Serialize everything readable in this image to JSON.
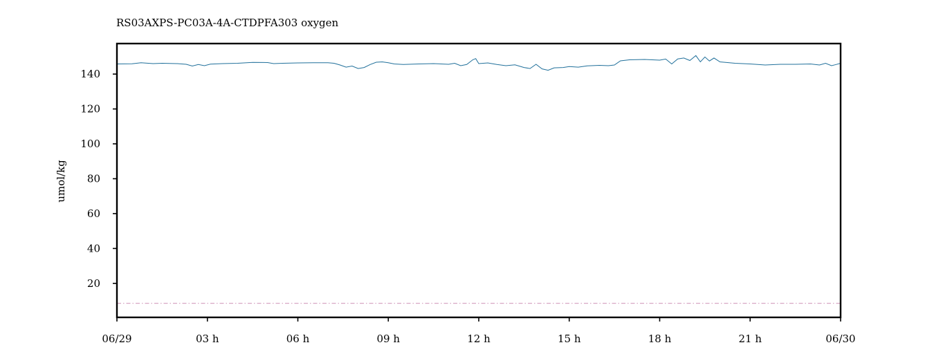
{
  "chart_data": {
    "type": "line",
    "title": "RS03AXPS-PC03A-4A-CTDPFA303 oxygen",
    "xlabel": "",
    "ylabel": "umol/kg",
    "x_unit": "hours",
    "xlim": [
      0,
      24
    ],
    "ylim": [
      0.5,
      157.5
    ],
    "x_ticks": [
      {
        "value": 0,
        "label": "06/29"
      },
      {
        "value": 3,
        "label": "03 h"
      },
      {
        "value": 6,
        "label": "06 h"
      },
      {
        "value": 9,
        "label": "09 h"
      },
      {
        "value": 12,
        "label": "12 h"
      },
      {
        "value": 15,
        "label": "15 h"
      },
      {
        "value": 18,
        "label": "18 h"
      },
      {
        "value": 21,
        "label": "21 h"
      },
      {
        "value": 24,
        "label": "06/30"
      }
    ],
    "y_ticks": [
      20,
      40,
      60,
      80,
      100,
      120,
      140
    ],
    "grid": false,
    "legend": "none",
    "series": [
      {
        "color": "#1f6f9a",
        "style": "solid",
        "points": [
          [
            0,
            145.8
          ],
          [
            0.5,
            145.9
          ],
          [
            0.8,
            146.5
          ],
          [
            1.2,
            146.0
          ],
          [
            1.5,
            146.2
          ],
          [
            2.0,
            146.0
          ],
          [
            2.3,
            145.6
          ],
          [
            2.5,
            144.6
          ],
          [
            2.7,
            145.5
          ],
          [
            2.9,
            144.8
          ],
          [
            3.1,
            145.7
          ],
          [
            3.5,
            146.0
          ],
          [
            4.0,
            146.2
          ],
          [
            4.5,
            146.7
          ],
          [
            5.0,
            146.6
          ],
          [
            5.2,
            146.0
          ],
          [
            5.5,
            146.2
          ],
          [
            6.0,
            146.4
          ],
          [
            6.5,
            146.5
          ],
          [
            7.0,
            146.5
          ],
          [
            7.2,
            146.2
          ],
          [
            7.4,
            145.2
          ],
          [
            7.6,
            144.0
          ],
          [
            7.8,
            144.6
          ],
          [
            8.0,
            143.2
          ],
          [
            8.2,
            143.8
          ],
          [
            8.4,
            145.5
          ],
          [
            8.6,
            146.8
          ],
          [
            8.8,
            147.0
          ],
          [
            9.0,
            146.5
          ],
          [
            9.2,
            145.8
          ],
          [
            9.5,
            145.5
          ],
          [
            10.0,
            145.8
          ],
          [
            10.5,
            146.0
          ],
          [
            11.0,
            145.6
          ],
          [
            11.2,
            146.2
          ],
          [
            11.4,
            144.8
          ],
          [
            11.6,
            145.5
          ],
          [
            11.8,
            148.2
          ],
          [
            11.9,
            148.9
          ],
          [
            12.0,
            146.0
          ],
          [
            12.3,
            146.4
          ],
          [
            12.6,
            145.5
          ],
          [
            12.9,
            144.8
          ],
          [
            13.2,
            145.3
          ],
          [
            13.5,
            143.8
          ],
          [
            13.7,
            143.2
          ],
          [
            13.9,
            145.6
          ],
          [
            14.1,
            143.0
          ],
          [
            14.3,
            142.2
          ],
          [
            14.5,
            143.6
          ],
          [
            14.8,
            143.8
          ],
          [
            15.0,
            144.3
          ],
          [
            15.3,
            144.0
          ],
          [
            15.6,
            144.7
          ],
          [
            16.0,
            145.0
          ],
          [
            16.3,
            144.8
          ],
          [
            16.5,
            145.2
          ],
          [
            16.7,
            147.6
          ],
          [
            17.0,
            148.2
          ],
          [
            17.5,
            148.4
          ],
          [
            18.0,
            148.0
          ],
          [
            18.2,
            148.6
          ],
          [
            18.4,
            145.8
          ],
          [
            18.6,
            148.7
          ],
          [
            18.8,
            149.2
          ],
          [
            19.0,
            147.8
          ],
          [
            19.2,
            150.6
          ],
          [
            19.35,
            147.0
          ],
          [
            19.5,
            149.8
          ],
          [
            19.65,
            147.5
          ],
          [
            19.8,
            149.2
          ],
          [
            20.0,
            147.0
          ],
          [
            20.5,
            146.2
          ],
          [
            21.0,
            145.8
          ],
          [
            21.5,
            145.2
          ],
          [
            22.0,
            145.6
          ],
          [
            22.5,
            145.6
          ],
          [
            23.0,
            145.8
          ],
          [
            23.3,
            145.2
          ],
          [
            23.5,
            146.2
          ],
          [
            23.7,
            144.8
          ],
          [
            23.85,
            145.5
          ],
          [
            24.0,
            146.2
          ]
        ]
      },
      {
        "color": "#d7a6c4",
        "style": "dashed",
        "points": [
          [
            0,
            8.6
          ],
          [
            24,
            8.6
          ]
        ]
      }
    ]
  }
}
